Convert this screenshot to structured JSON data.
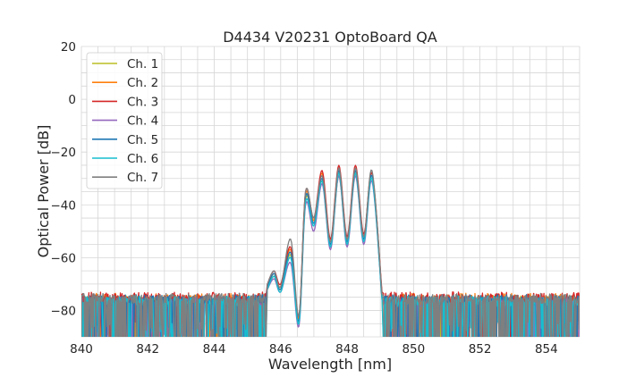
{
  "chart_data": {
    "type": "line",
    "title": "D4434 V20231 OptoBoard QA",
    "xlabel": "Wavelength [nm]",
    "ylabel": "Optical Power [dB]",
    "xlim": [
      840,
      855
    ],
    "ylim": [
      -90,
      20
    ],
    "xticks": [
      840,
      842,
      844,
      846,
      848,
      850,
      852,
      854
    ],
    "yticks": [
      -80,
      -60,
      -40,
      -20,
      0,
      20
    ],
    "xtick_labels": [
      "840",
      "842",
      "844",
      "846",
      "848",
      "850",
      "852",
      "854"
    ],
    "ytick_labels": [
      "−80",
      "−60",
      "−40",
      "−20",
      "0",
      "20"
    ],
    "grid": true,
    "legend_position": "top-left",
    "noise_floor_db": -76,
    "series": [
      {
        "name": "Ch. 1",
        "color": "#bcbd22",
        "offset_db": -0.5,
        "points": [
          [
            845.6,
            -72
          ],
          [
            845.8,
            -67
          ],
          [
            846.0,
            -72
          ],
          [
            846.3,
            -59
          ],
          [
            846.55,
            -84
          ],
          [
            846.75,
            -38
          ],
          [
            847.0,
            -46
          ],
          [
            847.25,
            -31
          ],
          [
            847.5,
            -56
          ],
          [
            847.75,
            -29
          ],
          [
            848.0,
            -55
          ],
          [
            848.25,
            -28
          ],
          [
            848.5,
            -54
          ],
          [
            848.75,
            -30
          ],
          [
            849.05,
            -75
          ]
        ]
      },
      {
        "name": "Ch. 2",
        "color": "#ff7f0e",
        "offset_db": 0.5,
        "points": [
          [
            845.6,
            -71
          ],
          [
            845.8,
            -66
          ],
          [
            846.0,
            -71
          ],
          [
            846.3,
            -57
          ],
          [
            846.55,
            -83
          ],
          [
            846.75,
            -36
          ],
          [
            847.0,
            -46
          ],
          [
            847.25,
            -28
          ],
          [
            847.5,
            -54
          ],
          [
            847.75,
            -26
          ],
          [
            848.0,
            -53
          ],
          [
            848.25,
            -26
          ],
          [
            848.5,
            -52
          ],
          [
            848.75,
            -28
          ],
          [
            849.05,
            -74
          ]
        ]
      },
      {
        "name": "Ch. 3",
        "color": "#d62728",
        "offset_db": 1.0,
        "points": [
          [
            845.6,
            -70
          ],
          [
            845.8,
            -65
          ],
          [
            846.0,
            -70
          ],
          [
            846.3,
            -56
          ],
          [
            846.55,
            -82
          ],
          [
            846.75,
            -35
          ],
          [
            847.0,
            -45
          ],
          [
            847.25,
            -27
          ],
          [
            847.5,
            -53
          ],
          [
            847.75,
            -25
          ],
          [
            848.0,
            -52
          ],
          [
            848.25,
            -25
          ],
          [
            848.5,
            -51
          ],
          [
            848.75,
            -28
          ],
          [
            849.05,
            -73
          ]
        ]
      },
      {
        "name": "Ch. 4",
        "color": "#9467bd",
        "offset_db": -1.0,
        "points": [
          [
            845.6,
            -72
          ],
          [
            845.8,
            -68
          ],
          [
            846.0,
            -73
          ],
          [
            846.3,
            -62
          ],
          [
            846.55,
            -86
          ],
          [
            846.75,
            -40
          ],
          [
            847.0,
            -50
          ],
          [
            847.25,
            -32
          ],
          [
            847.5,
            -57
          ],
          [
            847.75,
            -29
          ],
          [
            848.0,
            -56
          ],
          [
            848.25,
            -29
          ],
          [
            848.5,
            -55
          ],
          [
            848.75,
            -31
          ],
          [
            849.05,
            -76
          ]
        ]
      },
      {
        "name": "Ch. 5",
        "color": "#1f77b4",
        "offset_db": 0.0,
        "points": [
          [
            845.6,
            -71
          ],
          [
            845.8,
            -66
          ],
          [
            846.0,
            -72
          ],
          [
            846.3,
            -58
          ],
          [
            846.55,
            -84
          ],
          [
            846.75,
            -37
          ],
          [
            847.0,
            -47
          ],
          [
            847.25,
            -30
          ],
          [
            847.5,
            -55
          ],
          [
            847.75,
            -27
          ],
          [
            848.0,
            -54
          ],
          [
            848.25,
            -27
          ],
          [
            848.5,
            -53
          ],
          [
            848.75,
            -29
          ],
          [
            849.05,
            -75
          ]
        ]
      },
      {
        "name": "Ch. 6",
        "color": "#17becf",
        "offset_db": -0.5,
        "points": [
          [
            845.6,
            -72
          ],
          [
            845.8,
            -67
          ],
          [
            846.0,
            -73
          ],
          [
            846.3,
            -60
          ],
          [
            846.55,
            -85
          ],
          [
            846.75,
            -39
          ],
          [
            847.0,
            -48
          ],
          [
            847.25,
            -31
          ],
          [
            847.5,
            -56
          ],
          [
            847.75,
            -28
          ],
          [
            848.0,
            -55
          ],
          [
            848.25,
            -28
          ],
          [
            848.5,
            -54
          ],
          [
            848.75,
            -30
          ],
          [
            849.05,
            -76
          ]
        ]
      },
      {
        "name": "Ch. 7",
        "color": "#7f7f7f",
        "offset_db": 0.5,
        "points": [
          [
            845.6,
            -70
          ],
          [
            845.8,
            -65
          ],
          [
            846.0,
            -71
          ],
          [
            846.3,
            -53
          ],
          [
            846.55,
            -82
          ],
          [
            846.75,
            -35
          ],
          [
            847.0,
            -45
          ],
          [
            847.25,
            -29
          ],
          [
            847.5,
            -54
          ],
          [
            847.75,
            -26
          ],
          [
            848.0,
            -53
          ],
          [
            848.25,
            -26
          ],
          [
            848.5,
            -52
          ],
          [
            848.75,
            -27
          ],
          [
            849.05,
            -74
          ]
        ]
      }
    ]
  }
}
